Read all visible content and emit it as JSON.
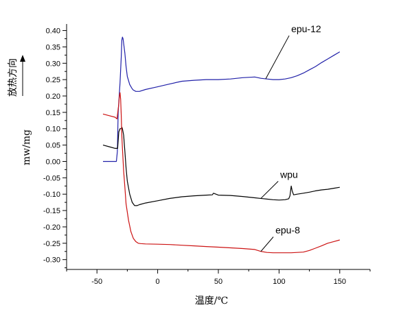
{
  "chart_data": {
    "type": "line",
    "title": "",
    "xlabel": "温度/℃",
    "ylabel": "mw/mg",
    "direction_label": "放热方向",
    "xlim": [
      -75,
      175
    ],
    "ylim": [
      -0.33,
      0.42
    ],
    "x_ticks": [
      -50,
      0,
      50,
      100,
      150
    ],
    "y_ticks": [
      0.4,
      0.35,
      0.3,
      0.25,
      0.2,
      0.15,
      0.1,
      0.05,
      0.0,
      -0.05,
      -0.1,
      -0.15,
      -0.2,
      -0.25,
      -0.3
    ],
    "grid": false,
    "legend": "none",
    "series": [
      {
        "name": "epu-12",
        "color": "#1f1fa8",
        "x": [
          -45,
          -38,
          -34,
          -33.2,
          -32.5,
          -31,
          -30,
          -29.5,
          -29,
          -28.5,
          -28,
          -27,
          -26,
          -25,
          -23,
          -21,
          -20,
          -18,
          -15,
          -10,
          0,
          10,
          20,
          30,
          40,
          50,
          60,
          70,
          80,
          85,
          90,
          95,
          100,
          105,
          110,
          115,
          120,
          125,
          130,
          135,
          140,
          145,
          150
        ],
        "y": [
          0.0,
          0.0,
          0.0,
          0.03,
          0.15,
          0.24,
          0.32,
          0.37,
          0.38,
          0.375,
          0.36,
          0.33,
          0.29,
          0.26,
          0.235,
          0.222,
          0.218,
          0.214,
          0.214,
          0.22,
          0.228,
          0.237,
          0.245,
          0.248,
          0.25,
          0.25,
          0.252,
          0.256,
          0.258,
          0.254,
          0.252,
          0.25,
          0.25,
          0.252,
          0.256,
          0.262,
          0.27,
          0.28,
          0.29,
          0.302,
          0.313,
          0.324,
          0.335
        ]
      },
      {
        "name": "wpu",
        "color": "#000000",
        "x": [
          -45,
          -40,
          -35,
          -33,
          -32,
          -31,
          -30,
          -29.5,
          -29,
          -28.5,
          -28,
          -27,
          -26,
          -25,
          -23,
          -21,
          -19,
          -17,
          -15,
          -10,
          0,
          10,
          20,
          30,
          40,
          45,
          46,
          48,
          50,
          60,
          70,
          80,
          90,
          95,
          100,
          105,
          108,
          109,
          110,
          110.8,
          112,
          115,
          120,
          125,
          130,
          135,
          140,
          145,
          150
        ],
        "y": [
          0.05,
          0.045,
          0.04,
          0.04,
          0.09,
          0.1,
          0.1,
          0.105,
          0.1,
          0.09,
          0.08,
          0.03,
          -0.02,
          -0.06,
          -0.1,
          -0.125,
          -0.135,
          -0.135,
          -0.132,
          -0.127,
          -0.12,
          -0.113,
          -0.108,
          -0.105,
          -0.103,
          -0.102,
          -0.097,
          -0.1,
          -0.103,
          -0.104,
          -0.107,
          -0.111,
          -0.115,
          -0.117,
          -0.118,
          -0.117,
          -0.114,
          -0.105,
          -0.075,
          -0.09,
          -0.102,
          -0.1,
          -0.097,
          -0.094,
          -0.09,
          -0.087,
          -0.085,
          -0.082,
          -0.079
        ]
      },
      {
        "name": "epu-8",
        "color": "#cc1111",
        "x": [
          -45,
          -40,
          -35,
          -33.5,
          -32.5,
          -32,
          -31.5,
          -31,
          -30.5,
          -30,
          -29.5,
          -29,
          -28,
          -27,
          -26,
          -24,
          -22,
          -20,
          -18,
          -16,
          -14,
          -10,
          0,
          10,
          20,
          30,
          40,
          50,
          60,
          70,
          80,
          85,
          90,
          95,
          100,
          110,
          120,
          125,
          130,
          135,
          140,
          145,
          150
        ],
        "y": [
          0.145,
          0.14,
          0.135,
          0.13,
          0.16,
          0.175,
          0.2,
          0.21,
          0.19,
          0.14,
          0.08,
          0.04,
          -0.03,
          -0.08,
          -0.13,
          -0.18,
          -0.215,
          -0.235,
          -0.245,
          -0.25,
          -0.251,
          -0.252,
          -0.253,
          -0.254,
          -0.256,
          -0.258,
          -0.26,
          -0.262,
          -0.264,
          -0.266,
          -0.269,
          -0.275,
          -0.278,
          -0.279,
          -0.279,
          -0.279,
          -0.277,
          -0.272,
          -0.265,
          -0.258,
          -0.25,
          -0.245,
          -0.24
        ]
      }
    ],
    "annotations": [
      {
        "text": "epu-12",
        "series": "epu-12",
        "at_x": 89,
        "text_x": 110,
        "text_y": 0.395
      },
      {
        "text": "wpu",
        "series": "wpu",
        "at_x": 85,
        "text_x": 101,
        "text_y": -0.05
      },
      {
        "text": "epu-8",
        "series": "epu-8",
        "at_x": 85,
        "text_x": 97,
        "text_y": -0.22
      }
    ]
  }
}
